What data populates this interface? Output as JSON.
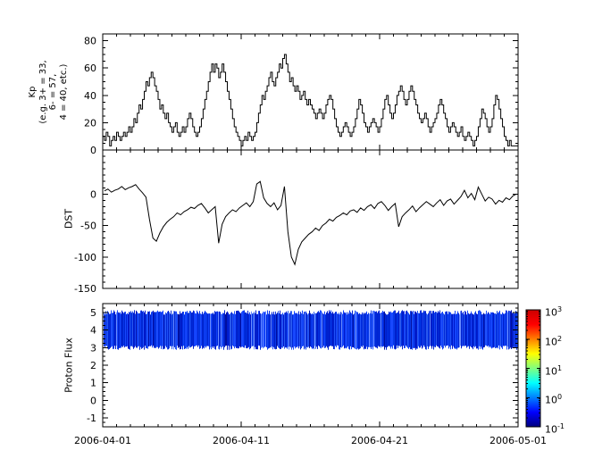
{
  "figure": {
    "background": "#ffffff",
    "x_axis": {
      "tick_labels": [
        "2006-04-01",
        "2006-04-11",
        "2006-04-21",
        "2006-05-01"
      ],
      "span_days": 30
    }
  },
  "chart_data": [
    {
      "type": "line",
      "line_style": "step",
      "name": "kp-index",
      "ylabel_lines": [
        "Kp",
        "(e.g. 3+ = 33,",
        "6- = 57,",
        "4 = 40, etc.)"
      ],
      "ylim": [
        0,
        85
      ],
      "yticks": [
        0,
        20,
        40,
        60,
        80
      ],
      "x_start": "2006-04-01",
      "x_end": "2006-05-01",
      "points_per_day": 8,
      "color": "#000000",
      "values": [
        10,
        7,
        13,
        10,
        3,
        7,
        10,
        7,
        13,
        10,
        7,
        10,
        13,
        10,
        13,
        17,
        13,
        17,
        23,
        20,
        27,
        33,
        30,
        37,
        43,
        50,
        47,
        53,
        57,
        53,
        47,
        43,
        37,
        30,
        33,
        27,
        23,
        27,
        20,
        17,
        13,
        17,
        20,
        13,
        10,
        13,
        17,
        13,
        17,
        23,
        27,
        23,
        17,
        13,
        10,
        13,
        17,
        23,
        30,
        37,
        43,
        50,
        57,
        63,
        57,
        63,
        60,
        53,
        57,
        63,
        57,
        50,
        43,
        37,
        30,
        23,
        17,
        13,
        10,
        7,
        3,
        7,
        10,
        7,
        13,
        10,
        7,
        10,
        13,
        20,
        27,
        33,
        40,
        37,
        43,
        47,
        53,
        57,
        50,
        47,
        53,
        57,
        63,
        60,
        67,
        70,
        63,
        57,
        50,
        53,
        47,
        43,
        47,
        43,
        37,
        40,
        43,
        37,
        33,
        37,
        33,
        30,
        27,
        23,
        27,
        30,
        27,
        23,
        27,
        33,
        37,
        40,
        37,
        30,
        23,
        17,
        13,
        10,
        13,
        17,
        20,
        17,
        13,
        10,
        13,
        17,
        23,
        30,
        37,
        33,
        27,
        20,
        17,
        13,
        17,
        20,
        23,
        20,
        17,
        13,
        17,
        23,
        30,
        37,
        40,
        33,
        27,
        23,
        27,
        33,
        40,
        43,
        47,
        43,
        37,
        33,
        37,
        43,
        47,
        43,
        37,
        33,
        27,
        23,
        20,
        23,
        27,
        23,
        17,
        13,
        17,
        20,
        23,
        27,
        33,
        37,
        33,
        27,
        23,
        17,
        13,
        17,
        20,
        17,
        13,
        10,
        13,
        17,
        10,
        7,
        10,
        13,
        10,
        7,
        3,
        7,
        10,
        17,
        23,
        30,
        27,
        23,
        17,
        13,
        17,
        23,
        33,
        40,
        37,
        30,
        23,
        17,
        10,
        7,
        3,
        7,
        3,
        3,
        3,
        3
      ]
    },
    {
      "type": "line",
      "name": "dst",
      "ylabel": "DST",
      "ylim": [
        -150,
        70
      ],
      "yticks": [
        0,
        -50,
        -100,
        -150
      ],
      "x_start": "2006-04-01",
      "x_end": "2006-05-01",
      "points_per_day": 4,
      "color": "#000000",
      "values": [
        5,
        8,
        3,
        6,
        8,
        12,
        7,
        10,
        12,
        15,
        8,
        2,
        -5,
        -40,
        -70,
        -75,
        -62,
        -52,
        -45,
        -40,
        -36,
        -30,
        -33,
        -28,
        -25,
        -21,
        -23,
        -18,
        -15,
        -22,
        -30,
        -25,
        -20,
        -78,
        -48,
        -36,
        -30,
        -25,
        -28,
        -22,
        -18,
        -14,
        -20,
        -12,
        16,
        20,
        -6,
        -15,
        -20,
        -14,
        -25,
        -18,
        12,
        -60,
        -100,
        -112,
        -88,
        -76,
        -70,
        -64,
        -60,
        -54,
        -58,
        -50,
        -46,
        -40,
        -43,
        -37,
        -34,
        -30,
        -33,
        -27,
        -25,
        -29,
        -22,
        -26,
        -20,
        -17,
        -23,
        -15,
        -12,
        -18,
        -26,
        -20,
        -15,
        -52,
        -36,
        -30,
        -25,
        -19,
        -28,
        -22,
        -17,
        -12,
        -16,
        -20,
        -14,
        -9,
        -18,
        -11,
        -8,
        -16,
        -10,
        -4,
        6,
        -6,
        1,
        -9,
        11,
        0,
        -11,
        -5,
        -8,
        -16,
        -10,
        -13,
        -6,
        -9,
        -3,
        0
      ]
    },
    {
      "type": "heatmap",
      "name": "proton-flux",
      "ylabel": "Proton Flux",
      "ylim": [
        -1.5,
        5.5
      ],
      "yticks": [
        5,
        4,
        3,
        2,
        1,
        0,
        -1
      ],
      "band": {
        "y_min": 3.0,
        "y_max": 5.0,
        "description": "dense vertical blue striations spanning the full time range, flux near 0.1-1",
        "palette": [
          "#0018c8",
          "#0030e0",
          "#1040f8",
          "#0028d8",
          "#2050f8",
          "#0020cc",
          "#2858ee",
          "#0838e8",
          "#1848ff",
          "#0024d0"
        ],
        "color_light": "#6a8cff",
        "color_dark": "#000f9e"
      },
      "colorbar": {
        "scale": "log",
        "tick_base": "10",
        "tick_exponents": [
          3,
          2,
          1,
          0,
          -1
        ],
        "colormap": "jet",
        "colormap_stops": [
          "#00007F",
          "#0000FF",
          "#007FFF",
          "#00FFFF",
          "#7FFF7F",
          "#FFFF00",
          "#FF7F00",
          "#FF0000",
          "#CC0000"
        ]
      }
    }
  ]
}
